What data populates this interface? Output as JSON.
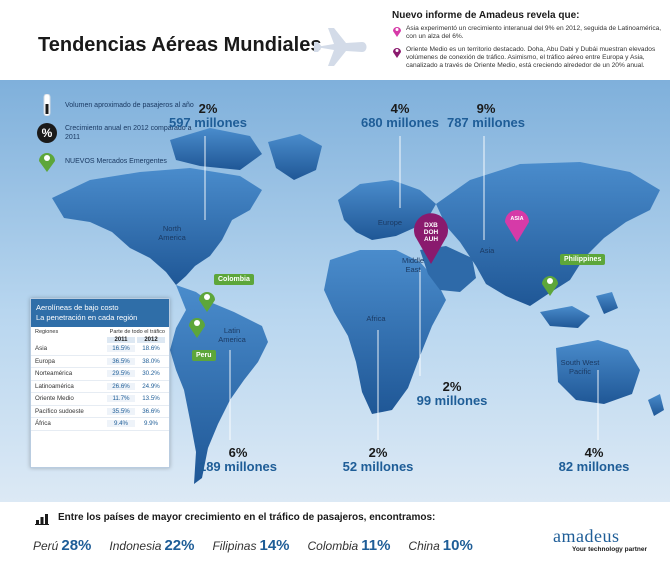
{
  "header": {
    "title": "Tendencias Aéreas Mundiales"
  },
  "news": {
    "title": "Nuevo informe de Amadeus revela que:",
    "items": [
      "Asia experimentó un crecimiento interanual del 9% en 2012, seguida de Latinoamérica, con un alza del 6%.",
      "Oriente Medio es un territorio destacado. Doha, Abu Dabi y Dubái muestran elevados volúmenes de conexión de tráfico. Asimismo, el tráfico aéreo entre Europa y Asia, canalizado a través de Oriente Medio, está creciendo alrededor de un 20% anual."
    ]
  },
  "legend": {
    "items": [
      {
        "text": "Volumen aproximado de pasajeros al año"
      },
      {
        "text": "Crecimiento anual en 2012 comparado a 2011"
      },
      {
        "text": "NUEVOS Mercados Emergentes"
      }
    ]
  },
  "stats": {
    "north_america": {
      "pct": "2%",
      "vol": "597 millones"
    },
    "europe": {
      "pct": "4%",
      "vol": "680 millones"
    },
    "asia": {
      "pct": "9%",
      "vol": "787 millones"
    },
    "middle_east": {
      "pct": "2%",
      "vol": "99 millones"
    },
    "latin_america": {
      "pct": "6%",
      "vol": "189 millones"
    },
    "africa": {
      "pct": "2%",
      "vol": "52 millones"
    },
    "south_west_pacific": {
      "pct": "4%",
      "vol": "82 millones"
    }
  },
  "regions": {
    "north_america": "North America",
    "europe": "Europe",
    "asia": "Asia",
    "middle_east": "Middle East",
    "latin_america": "Latin America",
    "africa": "Africa",
    "south_west_pacific": "South West Pacific"
  },
  "pins": {
    "colombia": "Colombia",
    "peru": "Peru",
    "philippines": "Philippines",
    "asia_pin": "ASIA",
    "mideast_pin": [
      "DXB",
      "DOH",
      "AUH"
    ]
  },
  "lowcost": {
    "title_line1": "Aerolíneas de bajo costo",
    "title_line2": "La penetración en cada región",
    "col_region": "Regiones",
    "col_share": "Parte de todo el tráfico",
    "years": [
      "2011",
      "2012"
    ],
    "rows": [
      {
        "region": "Asia",
        "v2011": "16.5%",
        "v2012": "18.6%"
      },
      {
        "region": "Europa",
        "v2011": "36.5%",
        "v2012": "38.0%"
      },
      {
        "region": "Norteamérica",
        "v2011": "29.5%",
        "v2012": "30.2%"
      },
      {
        "region": "Latinoamérica",
        "v2011": "26.6%",
        "v2012": "24.9%"
      },
      {
        "region": "Oriente Medio",
        "v2011": "11.7%",
        "v2012": "13.5%"
      },
      {
        "region": "Pacífico sudoeste",
        "v2011": "35.5%",
        "v2012": "36.6%"
      },
      {
        "region": "África",
        "v2011": "9.4%",
        "v2012": "9.9%"
      }
    ]
  },
  "footer": {
    "title": "Entre los países de mayor crecimiento en el tráfico de pasajeros, encontramos:",
    "ranking": [
      {
        "country": "Perú",
        "pct": "28%"
      },
      {
        "country": "Indonesia",
        "pct": "22%"
      },
      {
        "country": "Filipinas",
        "pct": "14%"
      },
      {
        "country": "Colombia",
        "pct": "11%"
      },
      {
        "country": "China",
        "pct": "10%"
      }
    ]
  },
  "brand": {
    "logo": "amadeus",
    "tagline": "Your technology partner"
  },
  "colors": {
    "accent": "#1e5d97",
    "emerging": "#5da63a",
    "asia_pin": "#d63aa8",
    "mideast_pin": "#8a1a6e",
    "land": "#3f7bbd"
  },
  "icons": [
    "plane-icon",
    "volume-icon",
    "percent-icon",
    "emerging-market-icon",
    "bar-chart-icon"
  ]
}
